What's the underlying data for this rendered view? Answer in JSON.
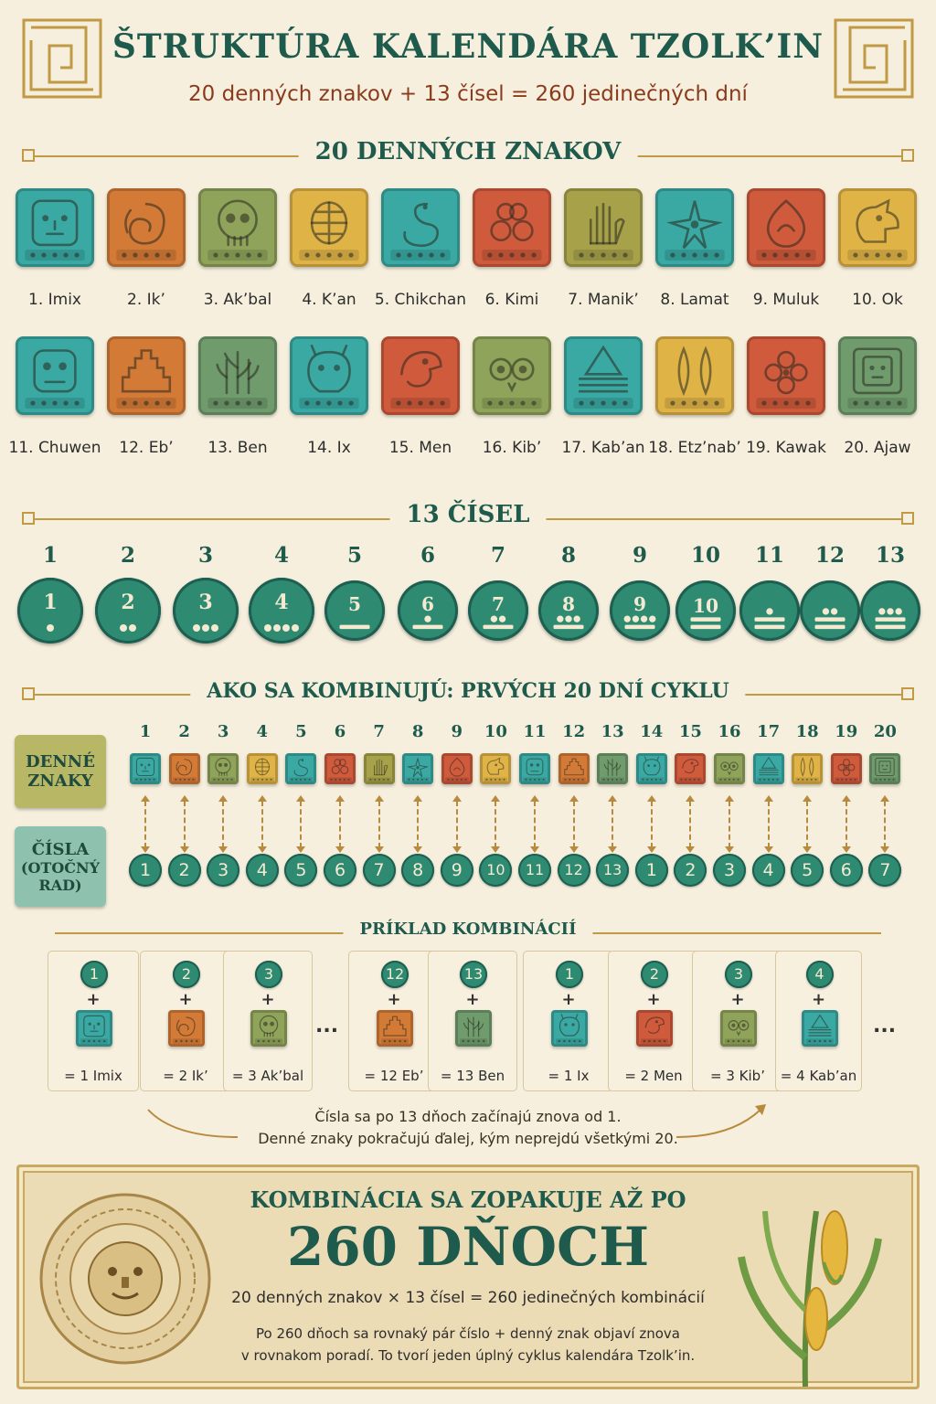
{
  "header": {
    "title": "ŠTRUKTÚRA KALENDÁRA TZOLK’IN",
    "subtitle": "20 denných znakov + 13 čísel = 260 jedinečných dní"
  },
  "colors": {
    "teal": "#3aa9a3",
    "orange": "#d37a37",
    "olive": "#8fa35a",
    "gold": "#e0b347",
    "red": "#cf5a3c",
    "green": "#6f9b6d",
    "coin": "#2f8a72",
    "accent": "#1f5b4d"
  },
  "day_signs": {
    "heading": "20 DENNÝCH ZNAKOV",
    "items": [
      {
        "label": "1. Imix",
        "color": "#3aa9a3",
        "icon": "face-icon"
      },
      {
        "label": "2. Ik’",
        "color": "#d37a37",
        "icon": "wind-icon"
      },
      {
        "label": "3. Ak’bal",
        "color": "#8fa35a",
        "icon": "skull-icon"
      },
      {
        "label": "4. K’an",
        "color": "#e0b347",
        "icon": "seed-icon"
      },
      {
        "label": "5. Chikchan",
        "color": "#3aa9a3",
        "icon": "serpent-icon"
      },
      {
        "label": "6. Kimi",
        "color": "#cf5a3c",
        "icon": "death-icon"
      },
      {
        "label": "7. Manik’",
        "color": "#a7a24a",
        "icon": "hand-icon"
      },
      {
        "label": "8. Lamat",
        "color": "#3aa9a3",
        "icon": "star-icon"
      },
      {
        "label": "9. Muluk",
        "color": "#cf5a3c",
        "icon": "water-icon"
      },
      {
        "label": "10. Ok",
        "color": "#e0b347",
        "icon": "dog-icon"
      },
      {
        "label": "11. Chuwen",
        "color": "#3aa9a3",
        "icon": "monkey-icon"
      },
      {
        "label": "12. Eb’",
        "color": "#d37a37",
        "icon": "pyramid-icon"
      },
      {
        "label": "13. Ben",
        "color": "#6f9b6d",
        "icon": "reed-icon"
      },
      {
        "label": "14. Ix",
        "color": "#3aa9a3",
        "icon": "jaguar-icon"
      },
      {
        "label": "15. Men",
        "color": "#cf5a3c",
        "icon": "eagle-icon"
      },
      {
        "label": "16. Kib’",
        "color": "#8fa35a",
        "icon": "owl-icon"
      },
      {
        "label": "17. Kab’an",
        "color": "#3aa9a3",
        "icon": "earth-icon"
      },
      {
        "label": "18. Etz’nab’",
        "color": "#e0b347",
        "icon": "flint-icon"
      },
      {
        "label": "19. Kawak",
        "color": "#cf5a3c",
        "icon": "storm-icon"
      },
      {
        "label": "20. Ajaw",
        "color": "#6f9b6d",
        "icon": "lord-icon"
      }
    ]
  },
  "numbers": {
    "heading": "13 ČÍSEL",
    "items": [
      "1",
      "2",
      "3",
      "4",
      "5",
      "6",
      "7",
      "8",
      "9",
      "10",
      "11",
      "12",
      "13"
    ]
  },
  "combination": {
    "heading": "AKO SA KOMBINUJÚ: PRVÝCH 20 DNÍ CYKLU",
    "row_labels": {
      "signs": [
        "DENNÉ",
        "ZNAKY"
      ],
      "numbers": [
        "ČÍSLA",
        "(OTOČNÝ",
        "RAD)"
      ]
    },
    "positions": [
      "1",
      "2",
      "3",
      "4",
      "5",
      "6",
      "7",
      "8",
      "9",
      "10",
      "11",
      "12",
      "13",
      "14",
      "15",
      "16",
      "17",
      "18",
      "19",
      "20"
    ],
    "rotating_numbers": [
      "1",
      "2",
      "3",
      "4",
      "5",
      "6",
      "7",
      "8",
      "9",
      "10",
      "11",
      "12",
      "13",
      "1",
      "2",
      "3",
      "4",
      "5",
      "6",
      "7"
    ]
  },
  "examples": {
    "heading": "PRÍKLAD KOMBINÁCIÍ",
    "plus": "+",
    "ellipsis": "...",
    "items": [
      {
        "num": "1",
        "result": "= 1 Imix",
        "sign": 0
      },
      {
        "num": "2",
        "result": "= 2 Ik’",
        "sign": 1
      },
      {
        "num": "3",
        "result": "= 3 Ak’bal",
        "sign": 2
      },
      {
        "num": "12",
        "result": "= 12 Eb’",
        "sign": 11
      },
      {
        "num": "13",
        "result": "= 13 Ben",
        "sign": 12
      },
      {
        "num": "1",
        "result": "= 1 Ix",
        "sign": 13
      },
      {
        "num": "2",
        "result": "= 2 Men",
        "sign": 14
      },
      {
        "num": "3",
        "result": "= 3 Kib’",
        "sign": 15
      },
      {
        "num": "4",
        "result": "= 4 Kab’an",
        "sign": 16
      }
    ],
    "note_line1": "Čísla sa po 13 dňoch začínajú znova od 1.",
    "note_line2": "Denné znaky pokračujú ďalej, kým neprejdú všetkými 20."
  },
  "footer": {
    "heading": "KOMBINÁCIA SA ZOPAKUJE AŽ PO",
    "big": "260 DŇOCH",
    "equation": "20 denných znakov × 13 čísel = 260 jedinečných kombinácií",
    "para_line1": "Po 260 dňoch sa rovnaký pár číslo + denný znak objaví znova",
    "para_line2": "v rovnakom poradí. To tvorí jeden úplný cyklus kalendára Tzolk’in."
  }
}
